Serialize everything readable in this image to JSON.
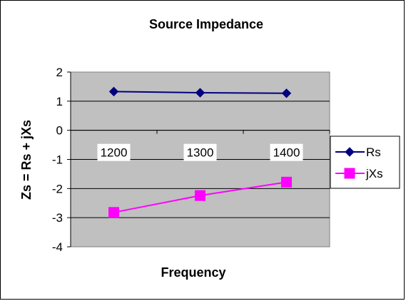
{
  "chart_data": {
    "type": "line",
    "title": "Source Impedance",
    "xlabel": "Frequency",
    "ylabel": "Zs = Rs + jXs",
    "categories": [
      "1200",
      "1300",
      "1400"
    ],
    "ylim": [
      -4,
      2
    ],
    "yticks": [
      2,
      1,
      0,
      -1,
      -2,
      -3,
      -4
    ],
    "grid": true,
    "legend_position": "right",
    "plot_background": "#c0c0c0",
    "series": [
      {
        "name": "Rs",
        "values": [
          1.33,
          1.29,
          1.27
        ],
        "color": "#000080",
        "marker": "diamond"
      },
      {
        "name": "jXs",
        "values": [
          -2.82,
          -2.24,
          -1.78
        ],
        "color": "#ff00ff",
        "marker": "square"
      }
    ]
  }
}
